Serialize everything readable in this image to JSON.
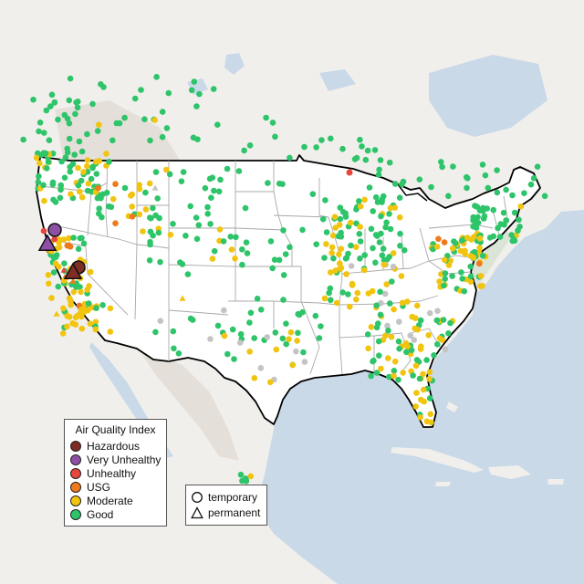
{
  "legend": {
    "title": "Air Quality Index",
    "categories": [
      {
        "label": "Hazardous",
        "color": "#7e2c24"
      },
      {
        "label": "Very Unhealthy",
        "color": "#8e4fa6"
      },
      {
        "label": "Unhealthy",
        "color": "#e8453c"
      },
      {
        "label": "USG",
        "color": "#ee7a1c"
      },
      {
        "label": "Moderate",
        "color": "#f1c40f"
      },
      {
        "label": "Good",
        "color": "#2ec46a"
      }
    ],
    "no_data_color": "#c4c4c4"
  },
  "monitor_type_legend": {
    "temporary": "temporary",
    "permanent": "permanent"
  },
  "map_colors": {
    "water": "#c9d9e8",
    "land": "#f1efec",
    "highland": "#e4dfd9",
    "forest": "#dbe5d7",
    "us_fill": "#ffffff",
    "state_line": "#a9a9a9",
    "border_line": "#000000"
  }
}
